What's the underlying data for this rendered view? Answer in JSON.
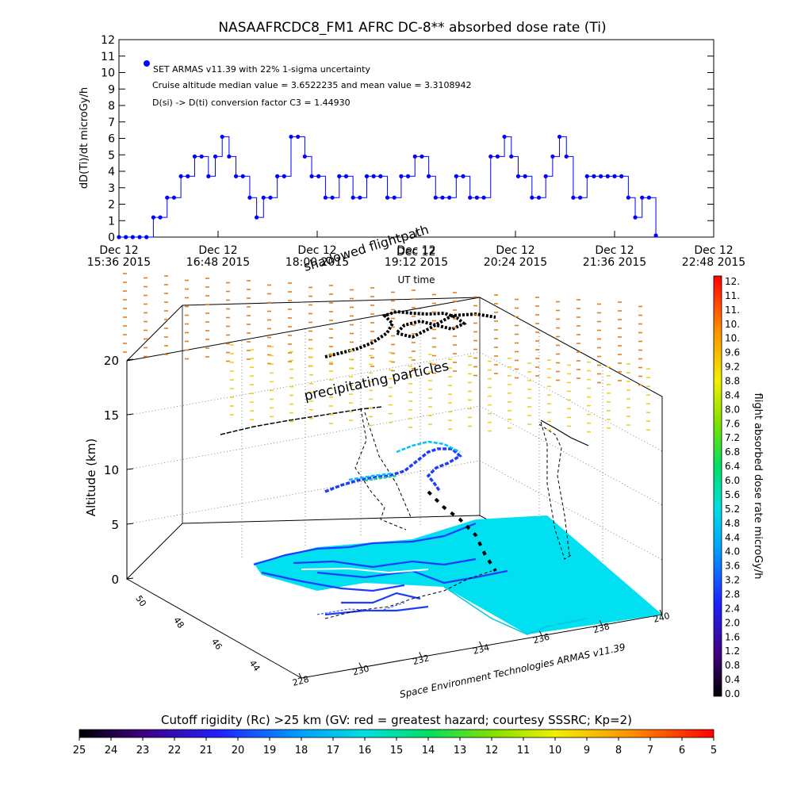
{
  "chart_data": [
    {
      "type": "line",
      "title": "NASAAFRCDC8_FM1 AFRC DC-8** absorbed dose rate (Ti)",
      "ylabel": "dD(Ti)/dt microGy/h",
      "xlabel": "UT time",
      "ylim": [
        0,
        12
      ],
      "yticks": [
        "0",
        "1",
        "2",
        "3",
        "4",
        "5",
        "6",
        "7",
        "8",
        "9",
        "10",
        "11",
        "12"
      ],
      "xticks": [
        {
          "line1": "Dec 12",
          "line2": "15:36 2015",
          "minutes": 0
        },
        {
          "line1": "Dec 12",
          "line2": "16:48 2015",
          "minutes": 72
        },
        {
          "line1": "Dec 12",
          "line2": "18:00 2015",
          "minutes": 144
        },
        {
          "line1": "Dec 12",
          "line2": "19:12 2015",
          "minutes": 216
        },
        {
          "line1": "Dec 12",
          "line2": "20:24 2015",
          "minutes": 288
        },
        {
          "line1": "Dec 12",
          "line2": "21:36 2015",
          "minutes": 360
        },
        {
          "line1": "Dec 12",
          "line2": "22:48 2015",
          "minutes": 432
        }
      ],
      "annotations": [
        "SET ARMAS v11.39 with 22% 1-sigma uncertainty",
        "Cruise altitude median value = 3.6522235 and mean value = 3.3108942",
        "D(si) -> D(ti) conversion factor C3 = 1.44930"
      ],
      "series": [
        {
          "name": "SET ARMAS v11.39 with 22% 1-sigma uncertainty",
          "color": "#0000ff",
          "x_minutes": [
            0,
            5,
            10,
            15,
            20,
            25,
            30,
            35,
            40,
            45,
            50,
            55,
            60,
            65,
            70,
            75,
            80,
            85,
            90,
            95,
            100,
            105,
            110,
            115,
            120,
            125,
            130,
            135,
            140,
            145,
            150,
            155,
            160,
            165,
            170,
            175,
            180,
            185,
            190,
            195,
            200,
            205,
            210,
            215,
            220,
            225,
            230,
            235,
            240,
            245,
            250,
            255,
            260,
            265,
            270,
            275,
            280,
            285,
            290,
            295,
            300,
            305,
            310,
            315,
            320,
            325,
            330,
            335,
            340,
            345,
            350,
            355,
            360,
            365,
            370,
            375,
            380,
            385,
            390
          ],
          "y": [
            0,
            0,
            0,
            0,
            0,
            1.2,
            1.2,
            2.4,
            2.4,
            3.7,
            3.7,
            4.9,
            4.9,
            3.7,
            4.9,
            6.1,
            4.9,
            3.7,
            3.7,
            2.4,
            1.2,
            2.4,
            2.4,
            3.7,
            3.7,
            6.1,
            6.1,
            4.9,
            3.7,
            3.7,
            2.4,
            2.4,
            3.7,
            3.7,
            2.4,
            2.4,
            3.7,
            3.7,
            3.7,
            2.4,
            2.4,
            3.7,
            3.7,
            4.9,
            4.9,
            3.7,
            2.4,
            2.4,
            2.4,
            3.7,
            3.7,
            2.4,
            2.4,
            2.4,
            4.9,
            4.9,
            6.1,
            4.9,
            3.7,
            3.7,
            2.4,
            2.4,
            3.7,
            4.9,
            6.1,
            4.9,
            2.4,
            2.4,
            3.7,
            3.7,
            3.7,
            3.7,
            3.7,
            3.7,
            2.4,
            1.2,
            2.4,
            2.4,
            0.1
          ]
        }
      ]
    },
    {
      "type": "scatter",
      "subtitle_labels": [
        "shadowed flightpath",
        "Dec 12"
      ],
      "zlabel": "Altitude (km)",
      "zticks": [
        "0",
        "5",
        "10",
        "15",
        "20"
      ],
      "lat_ticks": [
        "44",
        "46",
        "48",
        "50"
      ],
      "lon_ticks": [
        "228",
        "230",
        "232",
        "234",
        "236",
        "238",
        "240"
      ],
      "annotation": "precipitating particles",
      "credit": "Space Environment Technologies ARMAS v11.39"
    }
  ],
  "colorbars": {
    "dose": {
      "label": "flight absorbed dose rate microGy/h",
      "ticks": [
        "12.",
        "11.",
        "11.",
        "10.",
        "10.",
        "9.6",
        "9.2",
        "8.8",
        "8.4",
        "8.0",
        "7.6",
        "7.2",
        "6.8",
        "6.4",
        "6.0",
        "5.6",
        "5.2",
        "4.8",
        "4.4",
        "4.0",
        "3.6",
        "3.2",
        "2.8",
        "2.4",
        "2.0",
        "1.6",
        "1.2",
        "0.8",
        "0.4",
        "0.0"
      ]
    },
    "cutoff": {
      "label": "Cutoff rigidity (Rc) >25 km (GV: red = greatest hazard; courtesy SSSRC; Kp=2)",
      "ticks": [
        "25",
        "24",
        "23",
        "22",
        "21",
        "20",
        "19",
        "18",
        "17",
        "16",
        "15",
        "14",
        "13",
        "12",
        "11",
        "10",
        "9",
        "8",
        "7",
        "6",
        "5"
      ]
    }
  },
  "colors": {
    "series": "#0000ff",
    "ground": "#00e0f0",
    "coast": "#1e3cff",
    "upper_dashes": "#e08020",
    "lower_dashes": "#f0d020"
  }
}
